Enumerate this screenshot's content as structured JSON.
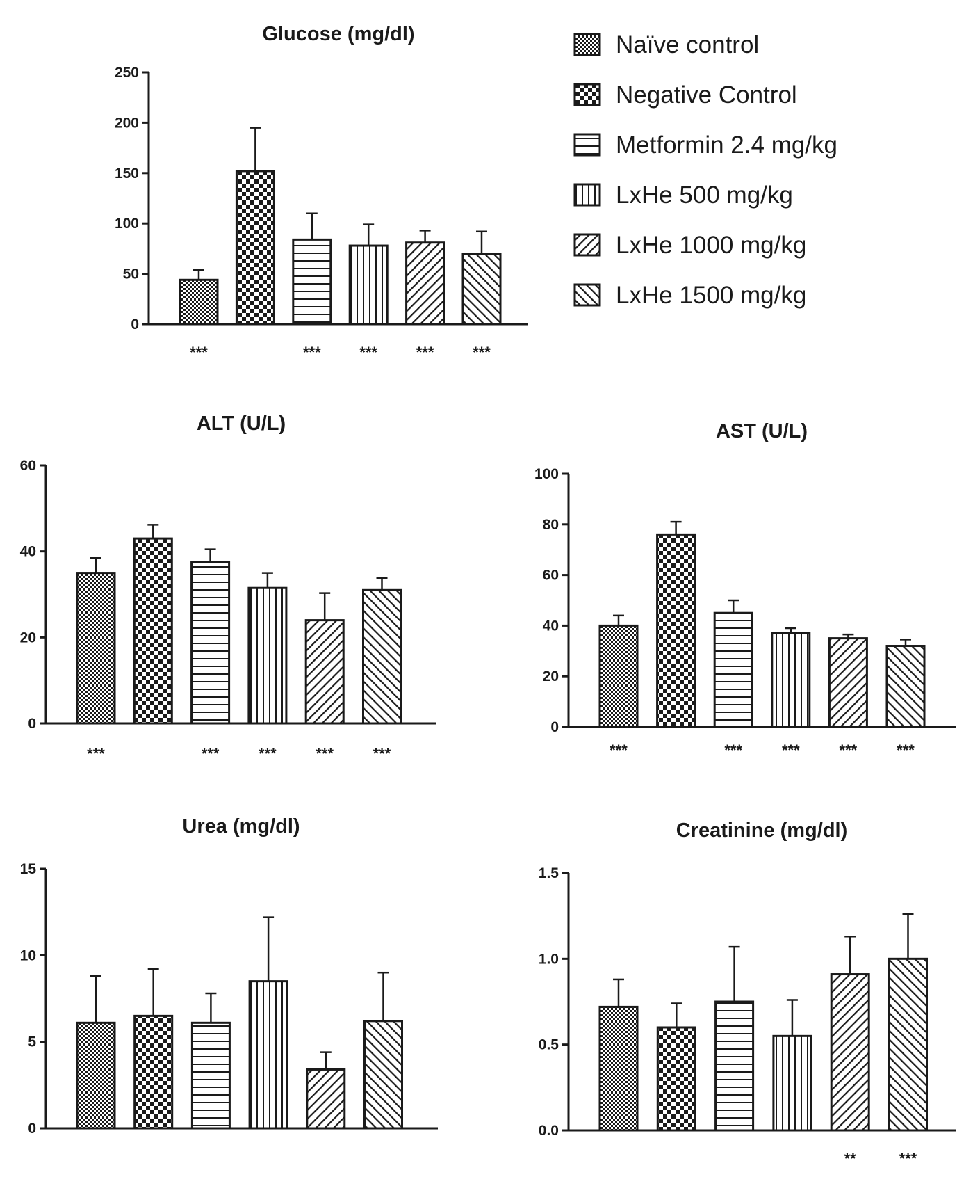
{
  "legend": [
    {
      "label": "Naïve control",
      "pattern": "fine-check"
    },
    {
      "label": "Negative Control",
      "pattern": "coarse-check"
    },
    {
      "label": "Metformin 2.4 mg/kg",
      "pattern": "horizontal"
    },
    {
      "label": "LxHe 500 mg/kg",
      "pattern": "vertical"
    },
    {
      "label": "LxHe 1000 mg/kg",
      "pattern": "diag-up"
    },
    {
      "label": "LxHe 1500 mg/kg",
      "pattern": "diag-down"
    }
  ],
  "colors": {
    "ink": "#1a1a1a",
    "background": "#ffffff"
  },
  "chart_data": [
    {
      "type": "bar",
      "title": "Glucose (mg/dl)",
      "categories": [
        "Naïve control",
        "Negative Control",
        "Metformin 2.4 mg/kg",
        "LxHe 500 mg/kg",
        "LxHe 1000 mg/kg",
        "LxHe 1500 mg/kg"
      ],
      "values": [
        44,
        152,
        84,
        78,
        81,
        70
      ],
      "errors": [
        10,
        43,
        26,
        21,
        12,
        22
      ],
      "ylim": [
        0,
        250
      ],
      "yticks": [
        "0",
        "50",
        "100",
        "150",
        "200",
        "250"
      ],
      "significance": [
        "***",
        "",
        "***",
        "***",
        "***",
        "***"
      ]
    },
    {
      "type": "bar",
      "title": "ALT (U/L)",
      "categories": [
        "Naïve control",
        "Negative Control",
        "Metformin 2.4 mg/kg",
        "LxHe 500 mg/kg",
        "LxHe 1000 mg/kg",
        "LxHe 1500 mg/kg"
      ],
      "values": [
        35,
        43,
        37.5,
        31.5,
        24,
        31
      ],
      "errors": [
        3.5,
        3.2,
        3,
        3.5,
        6.3,
        2.8
      ],
      "ylim": [
        0,
        60
      ],
      "yticks": [
        "0",
        "20",
        "40",
        "60"
      ],
      "significance": [
        "***",
        "",
        "***",
        "***",
        "***",
        "***"
      ]
    },
    {
      "type": "bar",
      "title": "AST (U/L)",
      "categories": [
        "Naïve control",
        "Negative Control",
        "Metformin 2.4 mg/kg",
        "LxHe 500 mg/kg",
        "LxHe 1000 mg/kg",
        "LxHe 1500 mg/kg"
      ],
      "values": [
        40,
        76,
        45,
        37,
        35,
        32
      ],
      "errors": [
        4,
        5,
        5,
        2,
        1.5,
        2.5
      ],
      "ylim": [
        0,
        100
      ],
      "yticks": [
        "0",
        "20",
        "40",
        "60",
        "80",
        "100"
      ],
      "significance": [
        "***",
        "",
        "***",
        "***",
        "***",
        "***"
      ]
    },
    {
      "type": "bar",
      "title": "Urea (mg/dl)",
      "categories": [
        "Naïve control",
        "Negative Control",
        "Metformin 2.4 mg/kg",
        "LxHe 500 mg/kg",
        "LxHe 1000 mg/kg",
        "LxHe 1500 mg/kg"
      ],
      "values": [
        6.1,
        6.5,
        6.1,
        8.5,
        3.4,
        6.2
      ],
      "errors": [
        2.7,
        2.7,
        1.7,
        3.7,
        1,
        2.8
      ],
      "ylim": [
        0,
        15
      ],
      "yticks": [
        "0",
        "5",
        "10",
        "15"
      ],
      "significance": [
        "",
        "",
        "",
        "",
        "",
        ""
      ]
    },
    {
      "type": "bar",
      "title": "Creatinine (mg/dl)",
      "categories": [
        "Naïve control",
        "Negative Control",
        "Metformin 2.4 mg/kg",
        "LxHe 500 mg/kg",
        "LxHe 1000 mg/kg",
        "LxHe 1500 mg/kg"
      ],
      "values": [
        0.72,
        0.6,
        0.75,
        0.55,
        0.91,
        1.0
      ],
      "errors": [
        0.16,
        0.14,
        0.32,
        0.21,
        0.22,
        0.26
      ],
      "ylim": [
        0,
        1.5
      ],
      "yticks": [
        "0.0",
        "0.5",
        "1.0",
        "1.5"
      ],
      "significance": [
        "",
        "",
        "",
        "",
        "**",
        "***"
      ]
    }
  ]
}
